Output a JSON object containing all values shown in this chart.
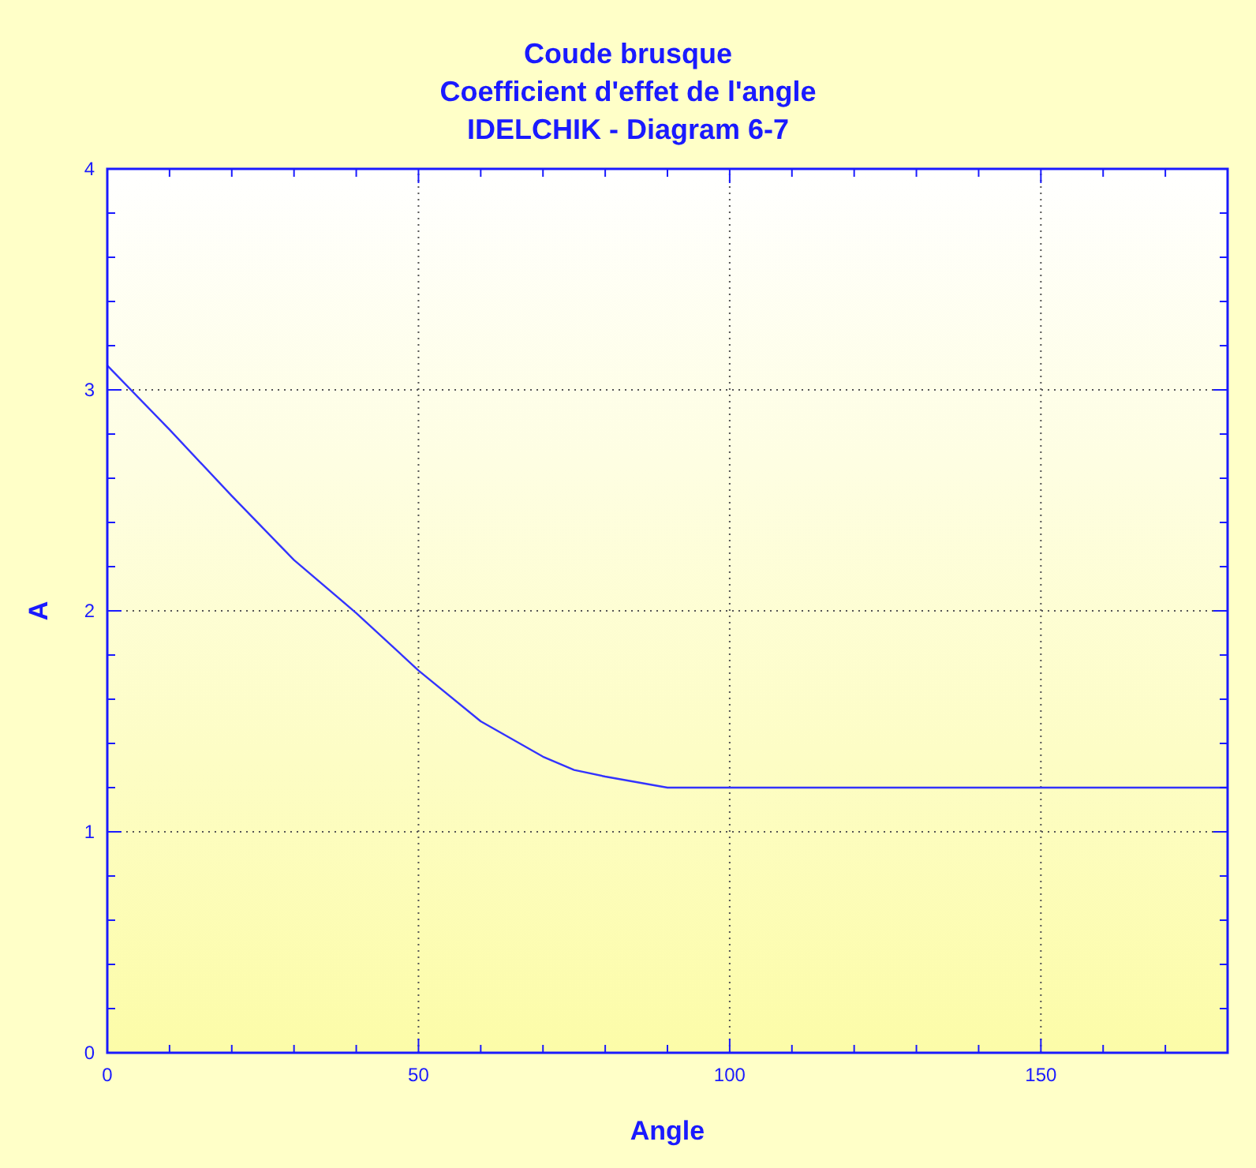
{
  "chart_data": {
    "type": "line",
    "title": "Coude brusque\nCoefficient d'effet de l'angle\nIDELCHIK - Diagram 6-7",
    "xlabel": "Angle",
    "ylabel": "A",
    "x": [
      0,
      10,
      20,
      30,
      40,
      50,
      60,
      70,
      75,
      80,
      90,
      100,
      120,
      140,
      160,
      180
    ],
    "series": [
      {
        "color": "#3333ff",
        "values": [
          3.11,
          2.82,
          2.52,
          2.23,
          1.99,
          1.73,
          1.5,
          1.34,
          1.28,
          1.25,
          1.2,
          1.2,
          1.2,
          1.2,
          1.2,
          1.2
        ]
      }
    ],
    "xlim": [
      0,
      180
    ],
    "ylim": [
      0,
      4
    ],
    "xticks": [
      0,
      {
        "value": 10,
        "label": null
      },
      {
        "value": 20,
        "label": null
      },
      {
        "value": 30,
        "label": null
      },
      {
        "value": 40,
        "label": null
      },
      50,
      {
        "value": 60,
        "label": null
      },
      {
        "value": 70,
        "label": null
      },
      {
        "value": 80,
        "label": null
      },
      {
        "value": 90,
        "label": null
      },
      100,
      {
        "value": 110,
        "label": null
      },
      {
        "value": 120,
        "label": null
      },
      {
        "value": 130,
        "label": null
      },
      {
        "value": 140,
        "label": null
      },
      150,
      {
        "value": 160,
        "label": null
      },
      {
        "value": 170,
        "label": null
      }
    ],
    "yticks": [
      0,
      {
        "value": 0.2,
        "label": null
      },
      {
        "value": 0.4,
        "label": null
      },
      {
        "value": 0.6,
        "label": null
      },
      {
        "value": 0.8,
        "label": null
      },
      1,
      {
        "value": 1.2,
        "label": null
      },
      {
        "value": 1.4,
        "label": null
      },
      {
        "value": 1.6,
        "label": null
      },
      {
        "value": 1.8,
        "label": null
      },
      2,
      {
        "value": 2.2,
        "label": null
      },
      {
        "value": 2.4,
        "label": null
      },
      {
        "value": 2.6,
        "label": null
      },
      {
        "value": 2.8,
        "label": null
      },
      3,
      {
        "value": 3.2,
        "label": null
      },
      {
        "value": 3.4,
        "label": null
      },
      {
        "value": 3.6,
        "label": null
      },
      {
        "value": 3.8,
        "label": null
      },
      4
    ],
    "grid": true,
    "marker": "none",
    "line_style": "solid"
  }
}
